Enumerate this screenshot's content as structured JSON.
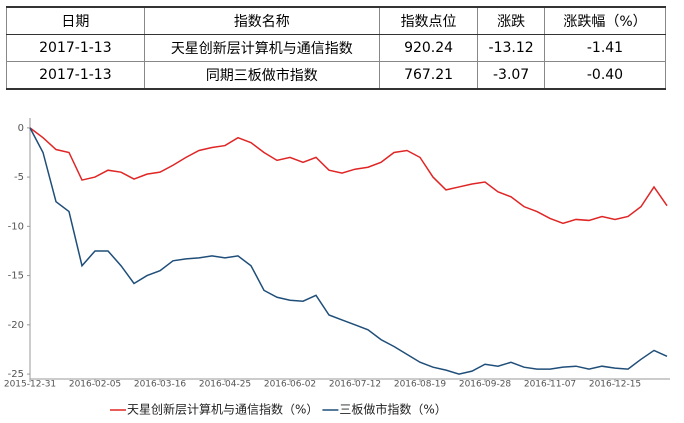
{
  "table": {
    "header": [
      "日期",
      "指数名称",
      "指数点位",
      "涨跌",
      "涨跌幅（%）"
    ],
    "rows": [
      [
        "2017-1-13",
        "天星创新层计算机与通信指数",
        "920.24",
        "-13.12",
        "-1.41"
      ],
      [
        "2017-1-13",
        "同期三板做市指数",
        "767.21",
        "-3.07",
        "-0.40"
      ]
    ]
  },
  "chart_data": {
    "type": "line",
    "categories": [
      "2015-12-31",
      null,
      null,
      null,
      null,
      "2016-02-05",
      null,
      null,
      null,
      null,
      "2016-03-16",
      null,
      null,
      null,
      null,
      "2016-04-25",
      null,
      null,
      null,
      null,
      "2016-06-02",
      null,
      null,
      null,
      null,
      "2016-07-12",
      null,
      null,
      null,
      null,
      "2016-08-19",
      null,
      null,
      null,
      null,
      "2016-09-28",
      null,
      null,
      null,
      null,
      "2016-11-07",
      null,
      null,
      null,
      null,
      "2016-12-15",
      null,
      null,
      null,
      null
    ],
    "series": [
      {
        "name": "天星创新层计算机与通信指数（%）",
        "color": "#e02525",
        "values": [
          0,
          -1,
          -2.2,
          -2.5,
          -5.3,
          -5,
          -4.3,
          -4.5,
          -5.2,
          -4.7,
          -4.5,
          -3.8,
          -3,
          -2.3,
          -2,
          -1.8,
          -1,
          -1.5,
          -2.5,
          -3.3,
          -3,
          -3.5,
          -3,
          -4.3,
          -4.6,
          -4.2,
          -4,
          -3.5,
          -2.5,
          -2.3,
          -3,
          -5,
          -6.3,
          -6,
          -5.7,
          -5.5,
          -6.5,
          -7,
          -8,
          -8.5,
          -9.2,
          -9.7,
          -9.3,
          -9.4,
          -9,
          -9.3,
          -9,
          -8,
          -6,
          -7.9
        ]
      },
      {
        "name": "三板做市指数（%）",
        "color": "#1f4e79",
        "values": [
          0,
          -2.5,
          -7.5,
          -8.5,
          -14,
          -12.5,
          -12.5,
          -14,
          -15.8,
          -15,
          -14.5,
          -13.5,
          -13.3,
          -13.2,
          -13,
          -13.2,
          -13,
          -14,
          -16.5,
          -17.2,
          -17.5,
          -17.6,
          -17,
          -19,
          -19.5,
          -20,
          -20.5,
          -21.5,
          -22.2,
          -23,
          -23.8,
          -24.3,
          -24.6,
          -25,
          -24.7,
          -24,
          -24.2,
          -23.8,
          -24.3,
          -24.5,
          -24.5,
          -24.3,
          -24.2,
          -24.5,
          -24.2,
          -24.4,
          -24.5,
          -23.5,
          -22.6,
          -23.2
        ]
      }
    ],
    "ylim": [
      -25.5,
      1
    ],
    "yticks": [
      0,
      -5,
      -10,
      -15,
      -20,
      -25
    ],
    "grid": false
  }
}
